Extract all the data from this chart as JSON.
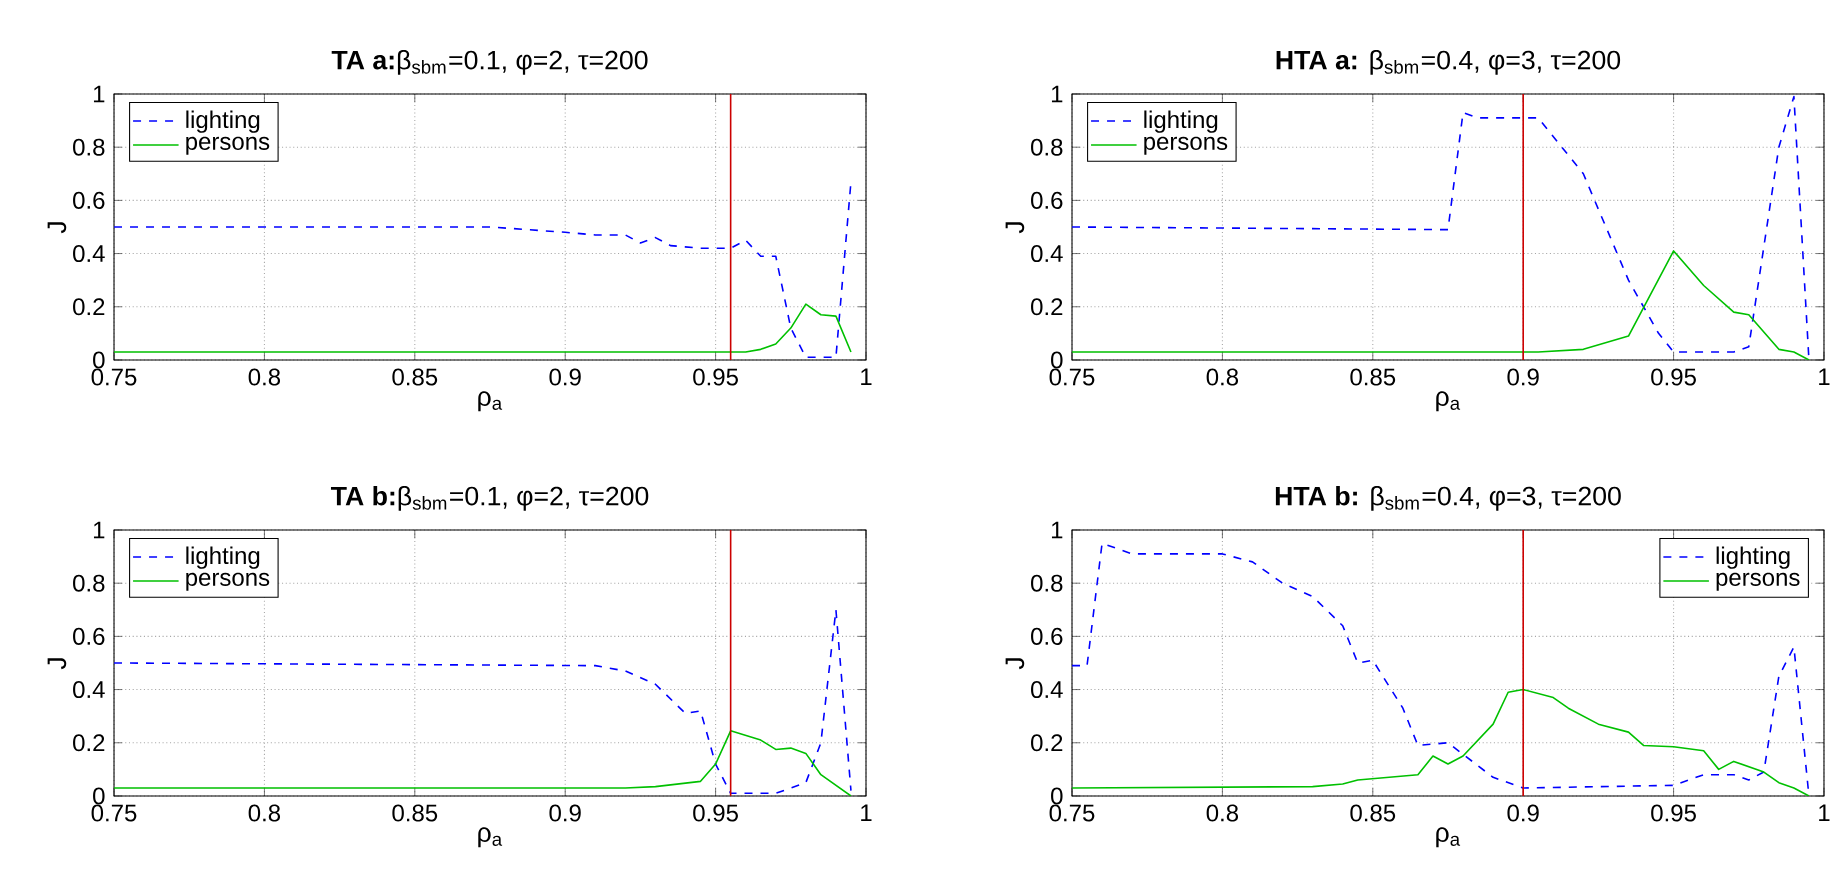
{
  "chart_data": [
    {
      "type": "line",
      "title": "**TA a:**β$_{sbm}$=0.1, φ=2, τ=200",
      "xlabel": "ρ$_{a}$",
      "ylabel": "J",
      "xlim": [
        0.75,
        1
      ],
      "ylim": [
        0,
        1
      ],
      "xticks": [
        0.75,
        0.8,
        0.85,
        0.9,
        0.95,
        1
      ],
      "yticks": [
        0,
        0.2,
        0.4,
        0.6,
        0.8,
        1
      ],
      "grid": true,
      "legend": "top left",
      "ref_lines": [
        {
          "axis": "x",
          "value": 0.955,
          "color": "#cc0000"
        }
      ],
      "series": [
        {
          "name": "lighting",
          "color": "#0000ff",
          "line_style": "dashed",
          "x": [
            0.75,
            0.875,
            0.9,
            0.91,
            0.92,
            0.925,
            0.93,
            0.935,
            0.945,
            0.955,
            0.96,
            0.965,
            0.97,
            0.975,
            0.98,
            0.99,
            0.995
          ],
          "values": [
            0.5,
            0.5,
            0.48,
            0.47,
            0.47,
            0.44,
            0.46,
            0.43,
            0.42,
            0.42,
            0.45,
            0.39,
            0.39,
            0.12,
            0.01,
            0.01,
            0.67
          ]
        },
        {
          "name": "persons",
          "color": "#00c000",
          "line_style": "solid",
          "x": [
            0.75,
            0.955,
            0.96,
            0.965,
            0.97,
            0.975,
            0.98,
            0.985,
            0.99,
            0.995
          ],
          "values": [
            0.03,
            0.03,
            0.03,
            0.04,
            0.06,
            0.12,
            0.21,
            0.17,
            0.165,
            0.03
          ]
        }
      ]
    },
    {
      "type": "line",
      "title": "**HTA a:** β$_{sbm}$=0.4, φ=3, τ=200",
      "xlabel": "ρ$_{a}$",
      "ylabel": "J",
      "xlim": [
        0.75,
        1
      ],
      "ylim": [
        0,
        1
      ],
      "xticks": [
        0.75,
        0.8,
        0.85,
        0.9,
        0.95,
        1
      ],
      "yticks": [
        0,
        0.2,
        0.4,
        0.6,
        0.8,
        1
      ],
      "grid": true,
      "legend": "top left",
      "ref_lines": [
        {
          "axis": "x",
          "value": 0.9,
          "color": "#cc0000"
        }
      ],
      "series": [
        {
          "name": "lighting",
          "color": "#0000ff",
          "line_style": "dashed",
          "x": [
            0.75,
            0.875,
            0.88,
            0.885,
            0.9,
            0.905,
            0.92,
            0.935,
            0.945,
            0.95,
            0.97,
            0.975,
            0.985,
            0.99,
            0.995
          ],
          "values": [
            0.5,
            0.49,
            0.93,
            0.91,
            0.91,
            0.91,
            0.7,
            0.3,
            0.1,
            0.03,
            0.03,
            0.05,
            0.8,
            0.99,
            0.0
          ]
        },
        {
          "name": "persons",
          "color": "#00c000",
          "line_style": "solid",
          "x": [
            0.75,
            0.905,
            0.92,
            0.935,
            0.95,
            0.96,
            0.97,
            0.975,
            0.985,
            0.99,
            0.995
          ],
          "values": [
            0.03,
            0.03,
            0.04,
            0.09,
            0.41,
            0.28,
            0.18,
            0.17,
            0.04,
            0.03,
            0.0
          ]
        }
      ]
    },
    {
      "type": "line",
      "title": "**TA b:**β$_{sbm}$=0.1, φ=2, τ=200",
      "xlabel": "ρ$_{a}$",
      "ylabel": "J",
      "xlim": [
        0.75,
        1
      ],
      "ylim": [
        0,
        1
      ],
      "xticks": [
        0.75,
        0.8,
        0.85,
        0.9,
        0.95,
        1
      ],
      "yticks": [
        0,
        0.2,
        0.4,
        0.6,
        0.8,
        1
      ],
      "grid": true,
      "legend": "top left",
      "ref_lines": [
        {
          "axis": "x",
          "value": 0.955,
          "color": "#cc0000"
        }
      ],
      "series": [
        {
          "name": "lighting",
          "color": "#0000ff",
          "line_style": "dashed",
          "x": [
            0.75,
            0.91,
            0.92,
            0.93,
            0.94,
            0.945,
            0.95,
            0.955,
            0.97,
            0.98,
            0.985,
            0.99,
            0.995
          ],
          "values": [
            0.5,
            0.49,
            0.47,
            0.42,
            0.31,
            0.32,
            0.12,
            0.01,
            0.01,
            0.05,
            0.2,
            0.7,
            0.02
          ]
        },
        {
          "name": "persons",
          "color": "#00c000",
          "line_style": "solid",
          "x": [
            0.75,
            0.92,
            0.93,
            0.945,
            0.95,
            0.955,
            0.965,
            0.97,
            0.975,
            0.98,
            0.985,
            0.995
          ],
          "values": [
            0.03,
            0.03,
            0.035,
            0.055,
            0.12,
            0.245,
            0.21,
            0.175,
            0.18,
            0.16,
            0.08,
            0.0
          ]
        }
      ]
    },
    {
      "type": "line",
      "title": "**HTA b:** β$_{sbm}$=0.4, φ=3, τ=200",
      "xlabel": "ρ$_{a}$",
      "ylabel": "J",
      "xlim": [
        0.75,
        1
      ],
      "ylim": [
        0,
        1
      ],
      "xticks": [
        0.75,
        0.8,
        0.85,
        0.9,
        0.95,
        1
      ],
      "yticks": [
        0,
        0.2,
        0.4,
        0.6,
        0.8,
        1
      ],
      "grid": true,
      "legend": "top right",
      "ref_lines": [
        {
          "axis": "x",
          "value": 0.9,
          "color": "#cc0000"
        }
      ],
      "series": [
        {
          "name": "lighting",
          "color": "#0000ff",
          "line_style": "dashed",
          "x": [
            0.75,
            0.755,
            0.76,
            0.77,
            0.8,
            0.81,
            0.82,
            0.83,
            0.84,
            0.845,
            0.85,
            0.86,
            0.865,
            0.875,
            0.89,
            0.9,
            0.95,
            0.96,
            0.97,
            0.975,
            0.98,
            0.985,
            0.99,
            0.995
          ],
          "values": [
            0.49,
            0.49,
            0.95,
            0.91,
            0.91,
            0.88,
            0.8,
            0.75,
            0.64,
            0.5,
            0.51,
            0.33,
            0.19,
            0.2,
            0.07,
            0.03,
            0.04,
            0.08,
            0.08,
            0.06,
            0.09,
            0.45,
            0.56,
            0.0
          ]
        },
        {
          "name": "persons",
          "color": "#00c000",
          "line_style": "solid",
          "x": [
            0.75,
            0.83,
            0.84,
            0.845,
            0.865,
            0.87,
            0.875,
            0.88,
            0.89,
            0.895,
            0.9,
            0.91,
            0.915,
            0.925,
            0.935,
            0.94,
            0.95,
            0.96,
            0.965,
            0.97,
            0.98,
            0.985,
            0.99,
            0.995
          ],
          "values": [
            0.03,
            0.035,
            0.045,
            0.06,
            0.08,
            0.15,
            0.12,
            0.15,
            0.27,
            0.39,
            0.4,
            0.37,
            0.33,
            0.27,
            0.24,
            0.19,
            0.185,
            0.17,
            0.1,
            0.13,
            0.09,
            0.05,
            0.03,
            0.0
          ]
        }
      ]
    }
  ]
}
